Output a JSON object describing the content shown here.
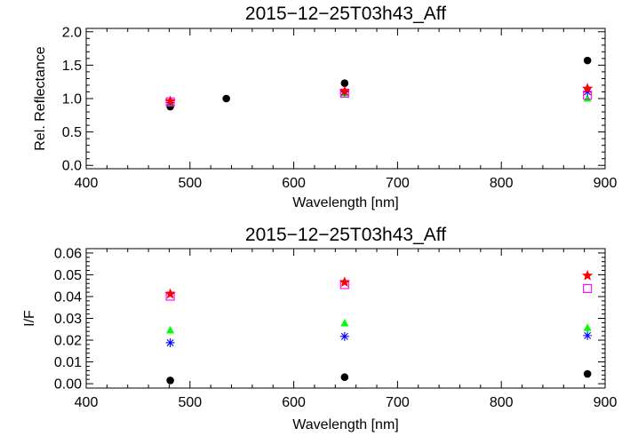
{
  "chart_data": [
    {
      "type": "scatter",
      "title": "2015−12−25T03h43_Aff",
      "xlabel": "Wavelength [nm]",
      "ylabel": "Rel. Reflectance",
      "xlim": [
        400,
        900
      ],
      "ylim": [
        -0.05,
        2.05
      ],
      "xticks": [
        400,
        500,
        600,
        700,
        800,
        900
      ],
      "xtick_labels": [
        "400",
        "500",
        "600",
        "700",
        "800",
        "900"
      ],
      "yticks": [
        0,
        0.5,
        1,
        1.5,
        2
      ],
      "ytick_labels": [
        "0.0",
        "0.5",
        "1.0",
        "1.5",
        "2.0"
      ],
      "grid": false,
      "series": [
        {
          "marker": "filled-circle",
          "color": "#000000",
          "x": [
            481,
            535,
            649,
            883
          ],
          "y": [
            0.88,
            1.0,
            1.23,
            1.57
          ]
        },
        {
          "marker": "filled-triangle",
          "color": "#00ff00",
          "x": [
            481,
            649,
            883
          ],
          "y": [
            0.93,
            1.08,
            1.0
          ]
        },
        {
          "marker": "asterisk",
          "color": "#0000ff",
          "x": [
            481,
            649,
            883
          ],
          "y": [
            0.94,
            1.1,
            1.1
          ]
        },
        {
          "marker": "open-square",
          "color": "#ff00ff",
          "x": [
            481,
            649,
            883
          ],
          "y": [
            0.95,
            1.08,
            1.05
          ]
        },
        {
          "marker": "filled-star",
          "color": "#ff0000",
          "x": [
            481,
            649,
            883
          ],
          "y": [
            0.96,
            1.11,
            1.15
          ]
        }
      ]
    },
    {
      "type": "scatter",
      "title": "2015−12−25T03h43_Aff",
      "xlabel": "Wavelength [nm]",
      "ylabel": "I/F",
      "xlim": [
        400,
        900
      ],
      "ylim": [
        -0.002,
        0.062
      ],
      "xticks": [
        400,
        500,
        600,
        700,
        800,
        900
      ],
      "xtick_labels": [
        "400",
        "500",
        "600",
        "700",
        "800",
        "900"
      ],
      "yticks": [
        0,
        0.01,
        0.02,
        0.03,
        0.04,
        0.05,
        0.06
      ],
      "ytick_labels": [
        "0.00",
        "0.01",
        "0.02",
        "0.03",
        "0.04",
        "0.05",
        "0.06"
      ],
      "grid": false,
      "series": [
        {
          "marker": "filled-circle",
          "color": "#000000",
          "x": [
            481,
            649,
            883
          ],
          "y": [
            0.0015,
            0.003,
            0.0045
          ]
        },
        {
          "marker": "filled-triangle",
          "color": "#00ff00",
          "x": [
            481,
            649,
            883
          ],
          "y": [
            0.0245,
            0.0278,
            0.0256
          ]
        },
        {
          "marker": "asterisk",
          "color": "#0000ff",
          "x": [
            481,
            649,
            883
          ],
          "y": [
            0.0188,
            0.0217,
            0.0221
          ]
        },
        {
          "marker": "open-square",
          "color": "#ff00ff",
          "x": [
            481,
            649,
            883
          ],
          "y": [
            0.0402,
            0.0455,
            0.0437
          ]
        },
        {
          "marker": "filled-star",
          "color": "#ff0000",
          "x": [
            481,
            649,
            883
          ],
          "y": [
            0.0412,
            0.0466,
            0.0496
          ]
        }
      ]
    }
  ]
}
